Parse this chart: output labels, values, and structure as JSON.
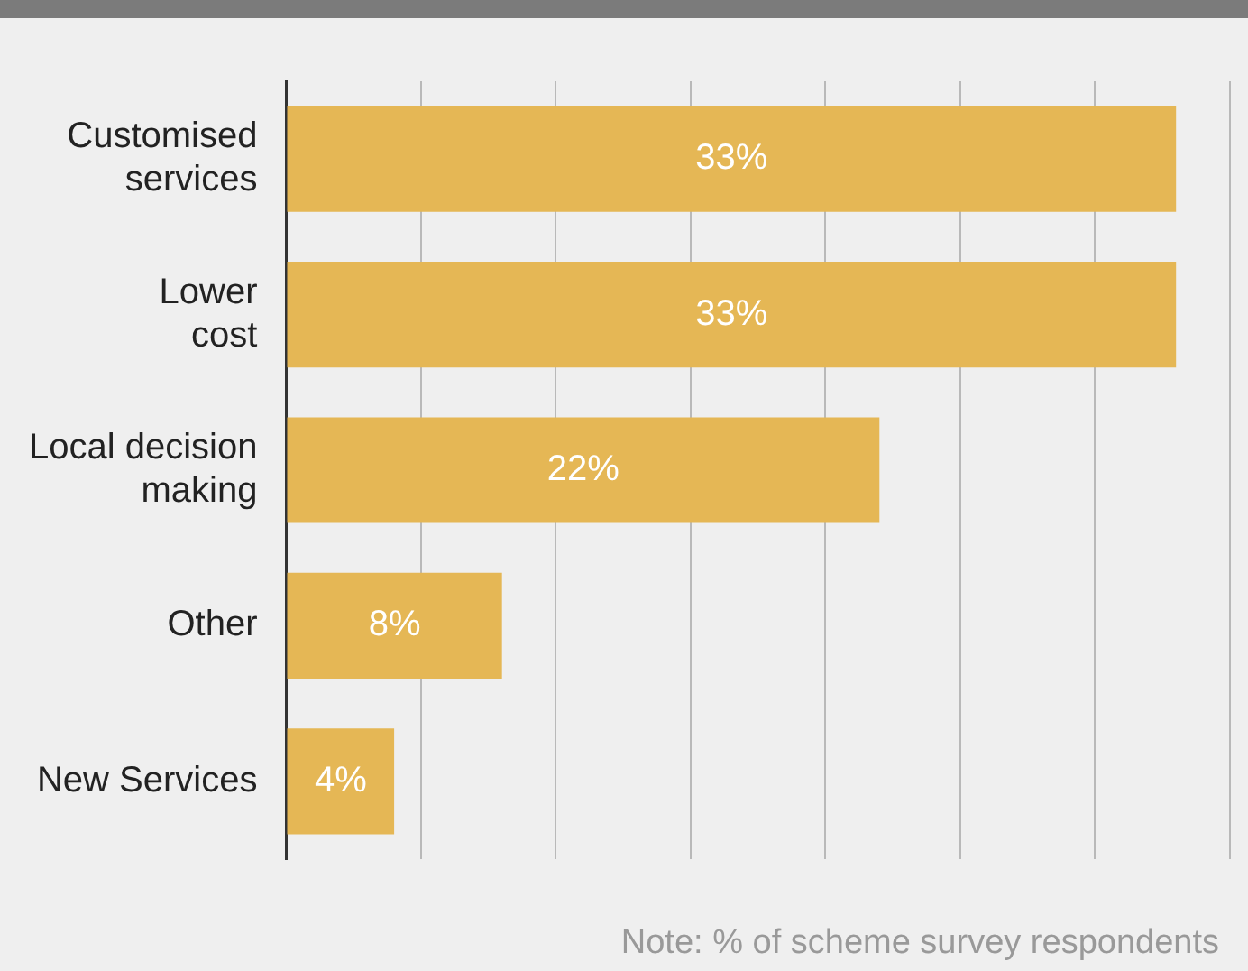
{
  "chart_data": {
    "type": "bar",
    "orientation": "horizontal",
    "categories": [
      "Customised\nservices",
      "Lower\ncost",
      "Local decision\nmaking",
      "Other",
      "New Services"
    ],
    "values": [
      33,
      33,
      22,
      8,
      4
    ],
    "color": "#e5b755",
    "value_labels": [
      "33%",
      "33%",
      "22%",
      "8%",
      "4%"
    ],
    "grid": "x",
    "tick_labels": "y",
    "legend": false,
    "annotations": [
      "Note: % of scheme survey respondents"
    ]
  }
}
